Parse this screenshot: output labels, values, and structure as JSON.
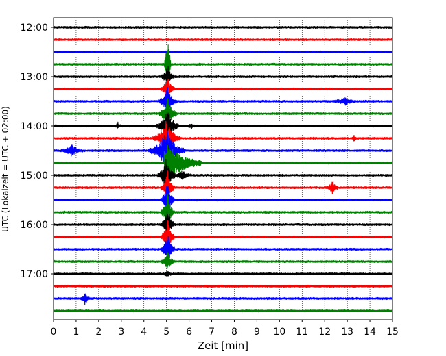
{
  "chart_data": {
    "type": "line",
    "title": "",
    "xlabel": "Zeit  [min]",
    "ylabel": "UTC (Lokalzeit = UTC + 02:00)",
    "xlim": [
      0,
      15
    ],
    "x_ticks": [
      "0",
      "1",
      "2",
      "3",
      "4",
      "5",
      "6",
      "7",
      "8",
      "9",
      "10",
      "11",
      "12",
      "13",
      "14",
      "15"
    ],
    "y_ticks": [
      "12:00",
      "13:00",
      "14:00",
      "15:00",
      "16:00",
      "17:00"
    ],
    "trace_start_times": [
      "12:00",
      "12:15",
      "12:30",
      "12:45",
      "13:00",
      "13:15",
      "13:30",
      "13:45",
      "14:00",
      "14:15",
      "14:30",
      "14:45",
      "15:00",
      "15:15",
      "15:30",
      "15:45",
      "16:00",
      "16:15",
      "16:30",
      "16:45",
      "17:00",
      "17:15",
      "17:30",
      "17:45"
    ],
    "trace_colors": [
      "#000000",
      "#ff0000",
      "#0000ff",
      "#008000"
    ],
    "grid": true,
    "events": [
      {
        "row": 3,
        "t": 5.05,
        "amp": 3.8,
        "dur": 0.15,
        "kind": "spike_up"
      },
      {
        "row": 4,
        "t": 5.05,
        "amp": 2.0,
        "dur": 0.3,
        "kind": "burst"
      },
      {
        "row": 5,
        "t": 5.05,
        "amp": 2.5,
        "dur": 0.3,
        "kind": "burst"
      },
      {
        "row": 6,
        "t": 5.05,
        "amp": 2.5,
        "dur": 0.4,
        "kind": "burst"
      },
      {
        "row": 7,
        "t": 5.05,
        "amp": 3.0,
        "dur": 0.4,
        "kind": "burst"
      },
      {
        "row": 8,
        "t": 5.05,
        "amp": 3.0,
        "dur": 0.5,
        "kind": "burst"
      },
      {
        "row": 9,
        "t": 5.0,
        "amp": 3.2,
        "dur": 0.6,
        "kind": "burst"
      },
      {
        "row": 10,
        "t": 5.0,
        "amp": 3.5,
        "dur": 0.8,
        "kind": "burst"
      },
      {
        "row": 11,
        "t": 4.95,
        "amp": 2.8,
        "dur": 1.6,
        "kind": "coda"
      },
      {
        "row": 12,
        "t": 5.0,
        "amp": 3.2,
        "dur": 0.4,
        "kind": "burst"
      },
      {
        "row": 12,
        "t": 5.7,
        "amp": 0.7,
        "dur": 0.4,
        "kind": "burst"
      },
      {
        "row": 13,
        "t": 5.05,
        "amp": 3.2,
        "dur": 0.3,
        "kind": "burst"
      },
      {
        "row": 14,
        "t": 5.05,
        "amp": 3.2,
        "dur": 0.3,
        "kind": "burst"
      },
      {
        "row": 15,
        "t": 5.05,
        "amp": 3.2,
        "dur": 0.3,
        "kind": "burst"
      },
      {
        "row": 16,
        "t": 5.05,
        "amp": 3.2,
        "dur": 0.3,
        "kind": "burst"
      },
      {
        "row": 17,
        "t": 5.05,
        "amp": 3.2,
        "dur": 0.3,
        "kind": "burst"
      },
      {
        "row": 18,
        "t": 5.05,
        "amp": 3.2,
        "dur": 0.3,
        "kind": "burst"
      },
      {
        "row": 19,
        "t": 5.05,
        "amp": 1.5,
        "dur": 0.3,
        "kind": "burst"
      },
      {
        "row": 20,
        "t": 5.05,
        "amp": 0.5,
        "dur": 0.2,
        "kind": "burst"
      },
      {
        "row": 10,
        "t": 0.8,
        "amp": 0.9,
        "dur": 0.5,
        "kind": "burst"
      },
      {
        "row": 13,
        "t": 12.35,
        "amp": 1.2,
        "dur": 0.25,
        "kind": "burst"
      },
      {
        "row": 6,
        "t": 12.9,
        "amp": 0.6,
        "dur": 0.5,
        "kind": "burst"
      },
      {
        "row": 22,
        "t": 1.4,
        "amp": 1.0,
        "dur": 0.2,
        "kind": "burst"
      },
      {
        "row": 8,
        "t": 6.1,
        "amp": 0.5,
        "dur": 0.15,
        "kind": "burst"
      },
      {
        "row": 8,
        "t": 2.85,
        "amp": 0.5,
        "dur": 0.15,
        "kind": "burst"
      },
      {
        "row": 9,
        "t": 13.3,
        "amp": 0.5,
        "dur": 0.1,
        "kind": "burst"
      }
    ]
  }
}
